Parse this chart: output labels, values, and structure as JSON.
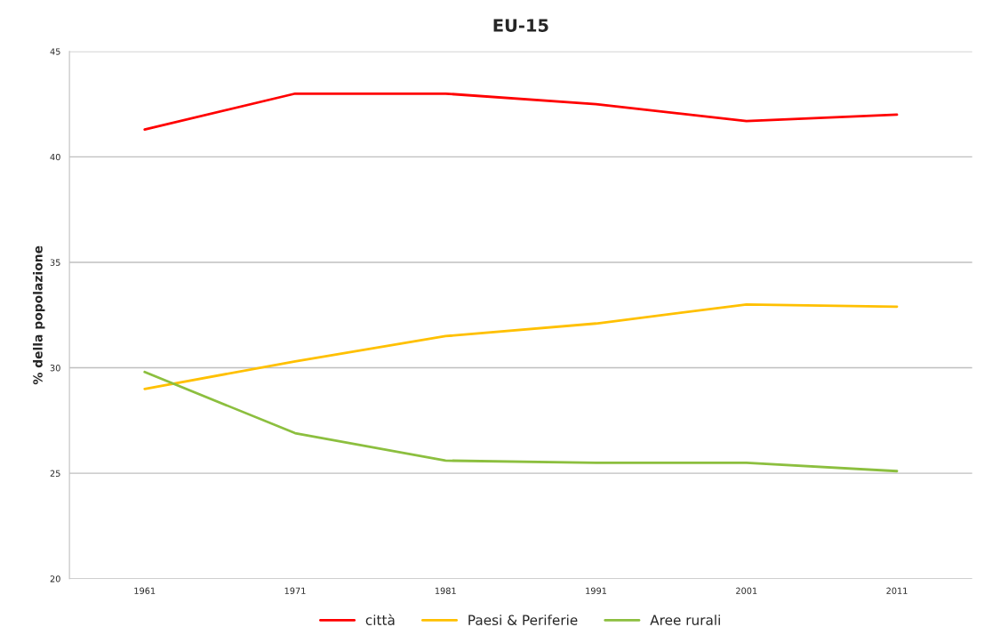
{
  "chart_data": {
    "type": "line",
    "title": "EU-15",
    "ylabel": "% della popolazione",
    "categories": [
      "1961",
      "1971",
      "1981",
      "1991",
      "2001",
      "2011"
    ],
    "series": [
      {
        "name": "città",
        "color": "#ff0000",
        "values": [
          41.3,
          43.0,
          43.0,
          42.5,
          41.7,
          42.0
        ]
      },
      {
        "name": "Paesi & Periferie",
        "color": "#ffc000",
        "values": [
          29.0,
          30.3,
          31.5,
          32.1,
          33.0,
          32.9
        ]
      },
      {
        "name": "Aree rurali",
        "color": "#8cbf3f",
        "values": [
          29.8,
          26.9,
          25.6,
          25.5,
          25.5,
          25.1
        ]
      }
    ],
    "ylim": [
      20,
      45
    ],
    "yticks": [
      20,
      25,
      30,
      35,
      40,
      45
    ],
    "grid": "y",
    "legend": "bottom",
    "marker": "none",
    "line_style": "solid"
  }
}
